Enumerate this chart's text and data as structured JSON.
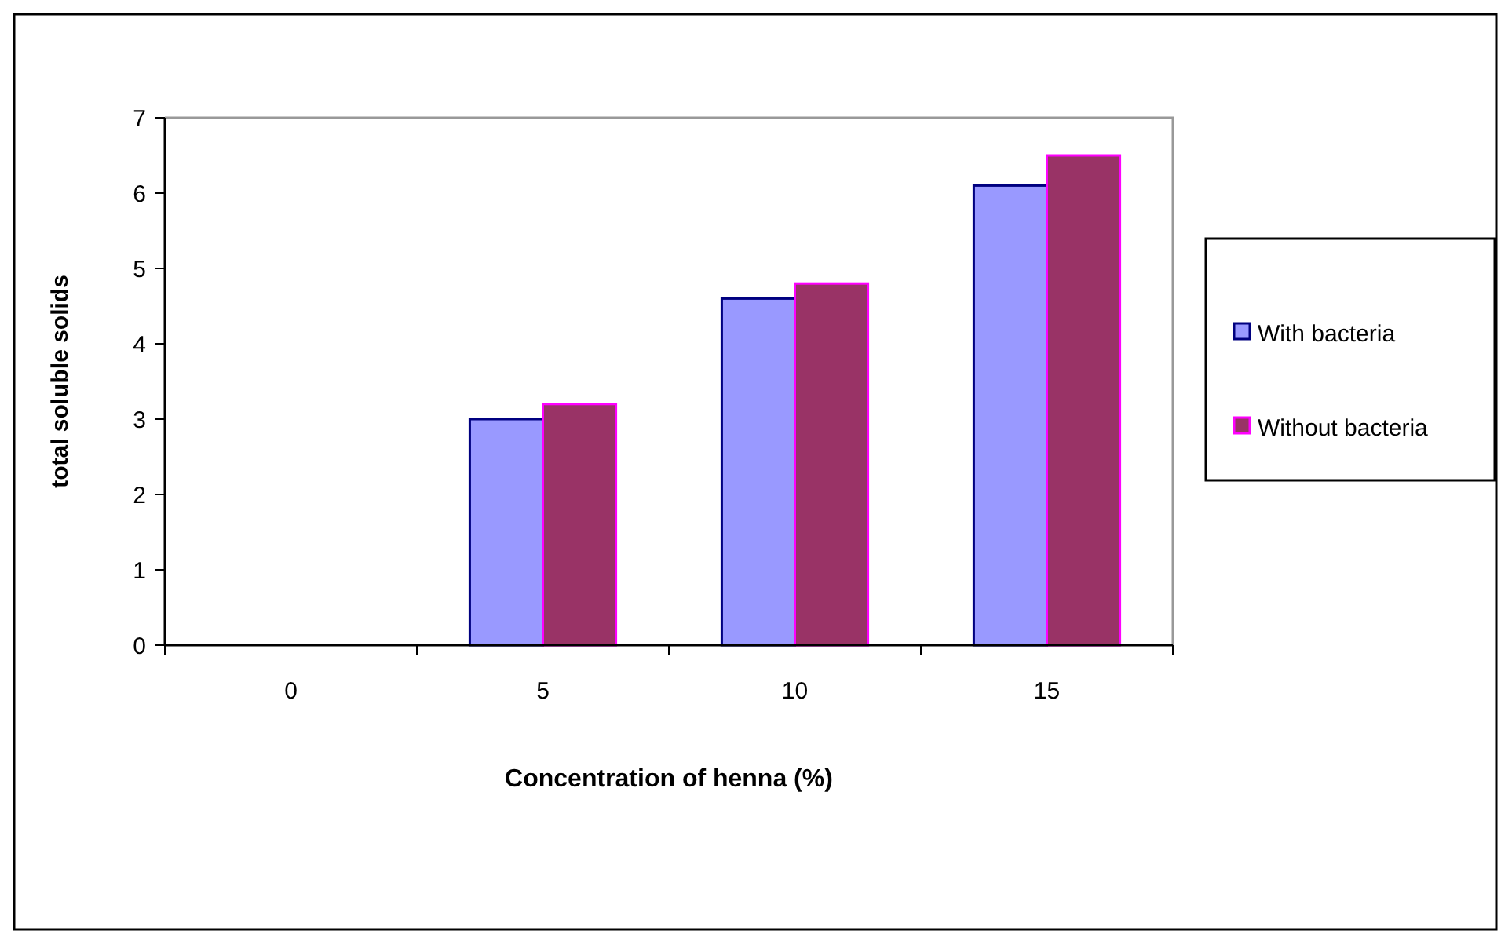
{
  "chart_data": {
    "type": "bar",
    "xlabel": "Concentration of henna (%)",
    "ylabel": "total soluble solids",
    "categories": [
      "0",
      "5",
      "10",
      "15"
    ],
    "series": [
      {
        "name": "With bacteria",
        "color": "#9999ff",
        "values": [
          0,
          3.0,
          4.6,
          6.1
        ]
      },
      {
        "name": "Without bacteria",
        "color": "#993366",
        "values": [
          0,
          3.2,
          4.8,
          6.5
        ]
      }
    ],
    "ylim": [
      0,
      7
    ],
    "yticks": [
      0,
      1,
      2,
      3,
      4,
      5,
      6,
      7
    ],
    "grid": false,
    "legend": "right"
  }
}
